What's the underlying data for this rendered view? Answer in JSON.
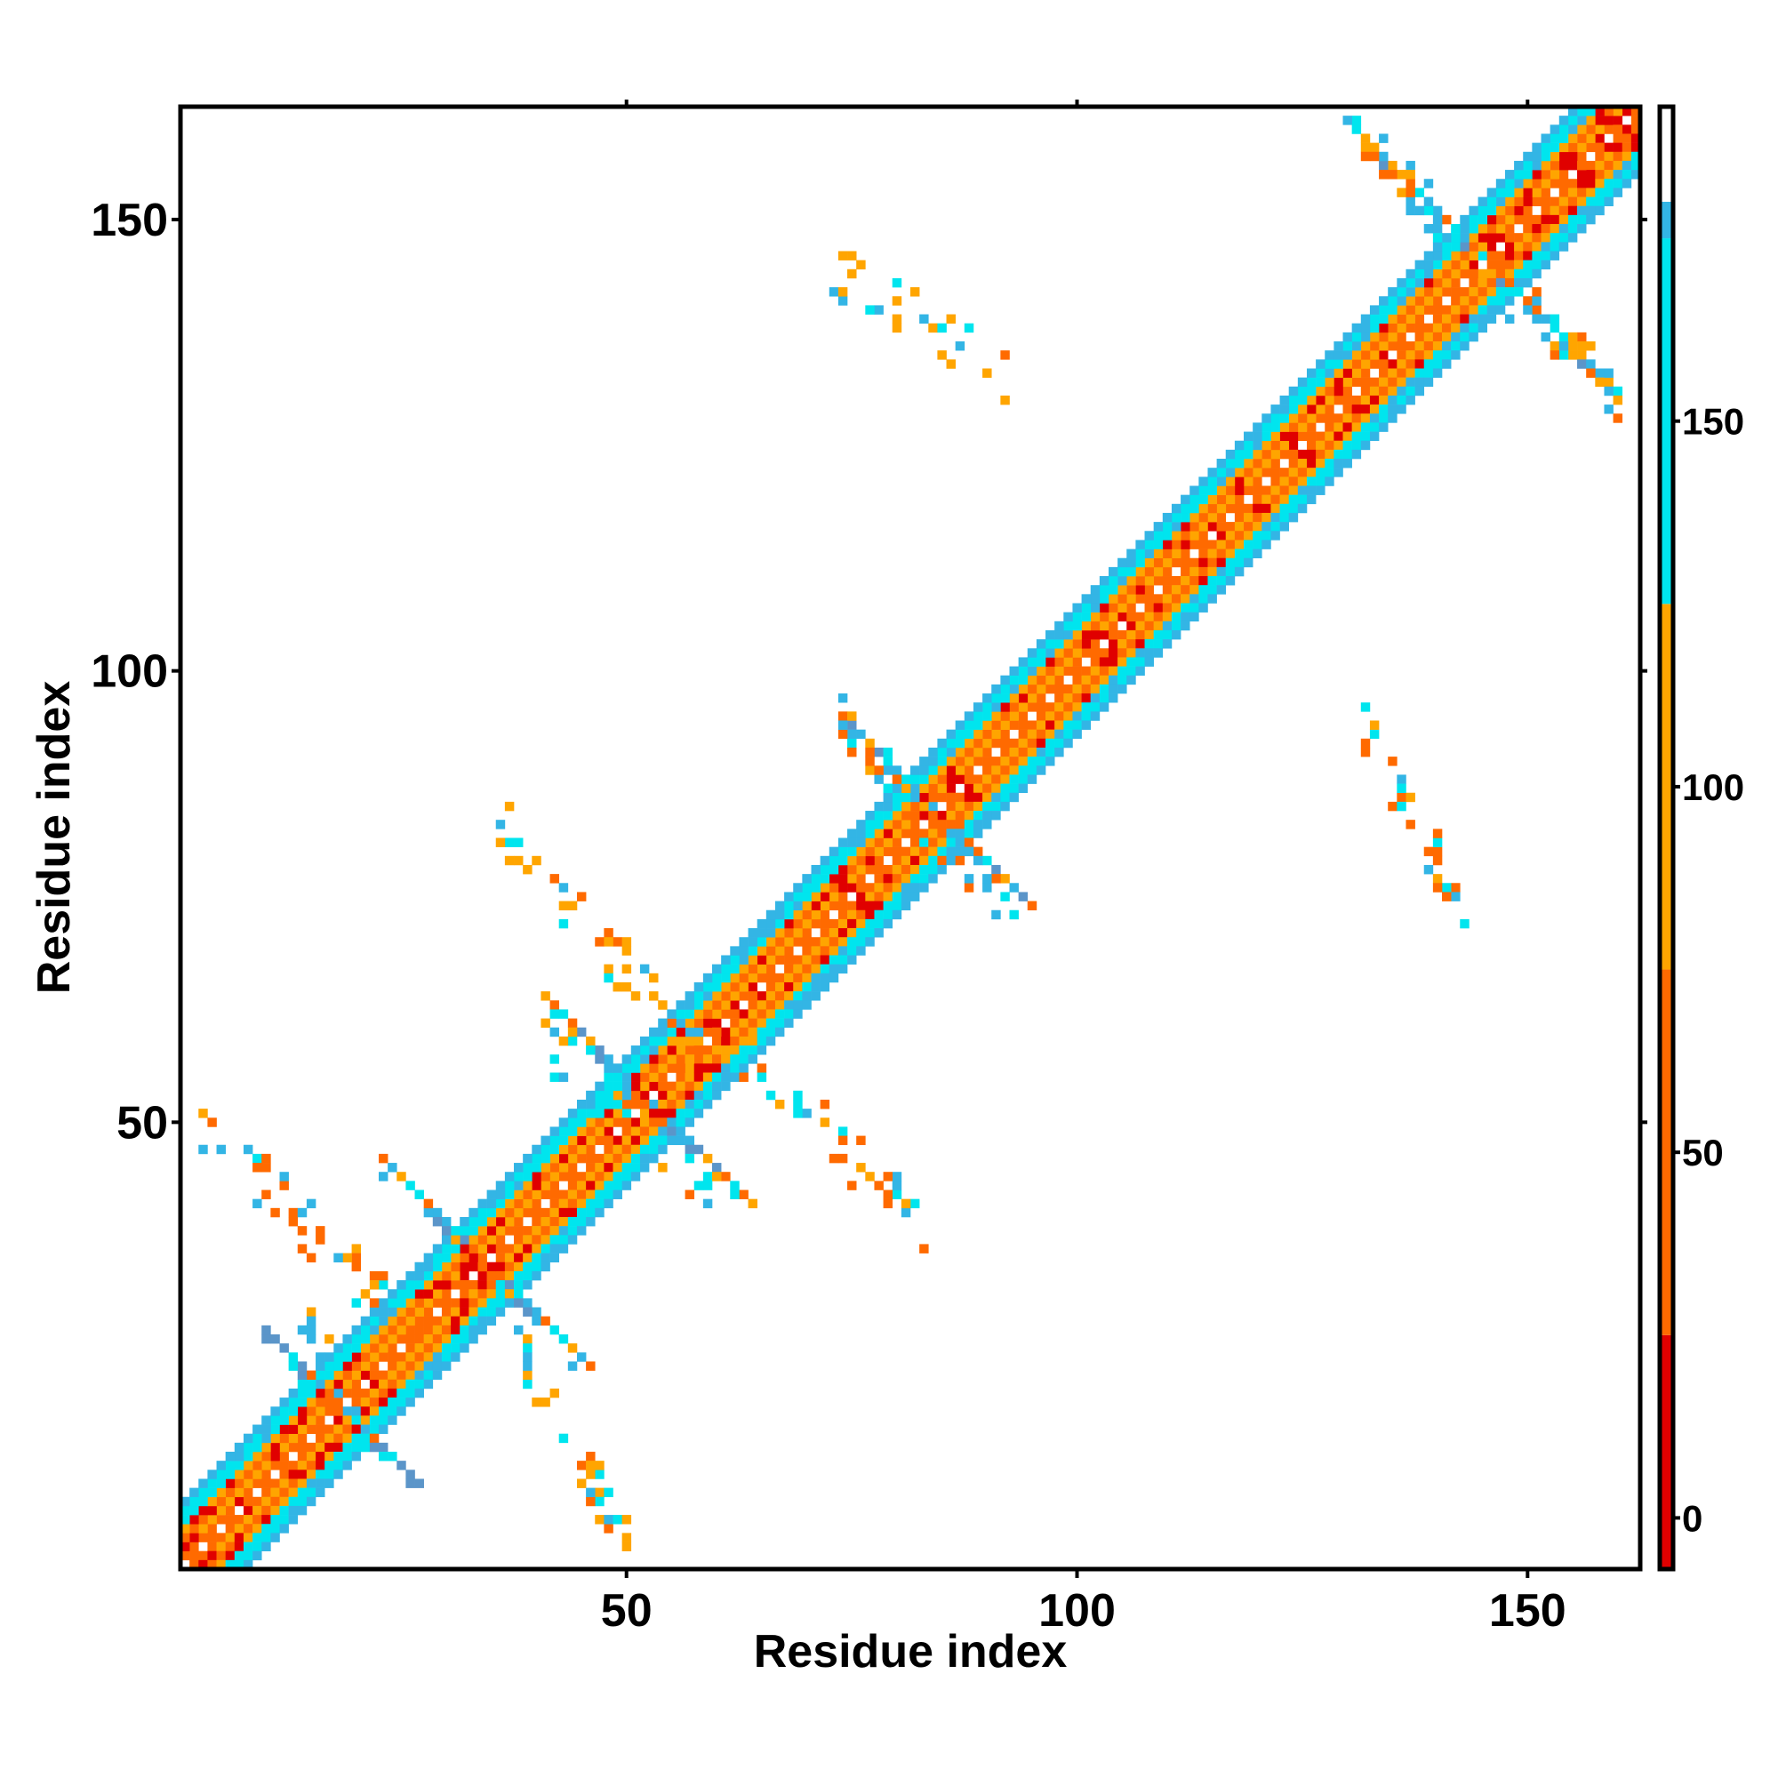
{
  "chart_data": {
    "type": "heatmap",
    "title": "",
    "xlabel": "Residue index",
    "ylabel": "Residue index",
    "xlim": [
      0.5,
      162.5
    ],
    "ylim": [
      0.5,
      162.5
    ],
    "x_ticks": [
      50,
      100,
      150
    ],
    "y_ticks": [
      50,
      100,
      150
    ],
    "colorbar": {
      "ticks": [
        0,
        50,
        100,
        150
      ],
      "range": [
        -7,
        193
      ],
      "bands": [
        {
          "from": -7,
          "to": 25,
          "color": "#e00000"
        },
        {
          "from": 25,
          "to": 75,
          "color": "#ff6a00"
        },
        {
          "from": 75,
          "to": 125,
          "color": "#ffa500"
        },
        {
          "from": 125,
          "to": 175,
          "color": "#00e5ee"
        },
        {
          "from": 175,
          "to": 180,
          "color": "#33b5e5"
        },
        {
          "from": 180,
          "to": 193,
          "color": "#ffffff"
        }
      ]
    },
    "colors": {
      "red": "#e00000",
      "orange": "#ff6a00",
      "amber": "#ffa500",
      "cyan": "#00e5ee",
      "blue": "#33b5e5",
      "steel": "#5b95c9"
    },
    "diagonal_band": {
      "n_residues": 162,
      "offsets": [
        {
          "d": 1,
          "color": "orange"
        },
        {
          "d": 2,
          "color": "amber"
        },
        {
          "d": 3,
          "color": "orange"
        },
        {
          "d": 4,
          "color": "amber"
        },
        {
          "d": 5,
          "color": "cyan"
        },
        {
          "d": 6,
          "color": "cyan"
        },
        {
          "d": 7,
          "color": "blue"
        }
      ]
    },
    "hotspots": [
      {
        "center": [
          18,
          18
        ],
        "color": "red"
      },
      {
        "center": [
          34,
          34
        ],
        "color": "red"
      },
      {
        "center": [
          52,
          52
        ],
        "color": "red"
      },
      {
        "center": [
          85,
          85
        ],
        "color": "red"
      },
      {
        "center": [
          146,
          146
        ],
        "color": "red"
      },
      {
        "center": [
          160,
          160
        ],
        "color": "red"
      }
    ],
    "crosses": [
      {
        "center": [
          18,
          18
        ],
        "arm": 8
      },
      {
        "center": [
          34,
          34
        ],
        "arm": 10
      },
      {
        "center": [
          52,
          52
        ],
        "arm": 10
      },
      {
        "center": [
          84,
          84
        ],
        "arm": 10
      },
      {
        "center": [
          145,
          145
        ],
        "arm": 13
      }
    ],
    "offdiag_clusters": [
      {
        "x": [
          3,
          27
        ],
        "y": [
          26,
          50
        ],
        "color": "orange"
      },
      {
        "x": [
          14,
          20
        ],
        "y": [
          18,
          30
        ],
        "color": "blue"
      },
      {
        "x": [
          37,
          50
        ],
        "y": [
          3,
          27
        ],
        "color": "amber"
      },
      {
        "x": [
          40,
          60
        ],
        "y": [
          43,
          60
        ],
        "color": "cyan"
      },
      {
        "x": [
          36,
          60
        ],
        "y": [
          55,
          83
        ],
        "color": "amber"
      },
      {
        "x": [
          61,
          84
        ],
        "y": [
          37,
          60
        ],
        "color": "orange"
      },
      {
        "x": [
          73,
          93
        ],
        "y": [
          73,
          95
        ],
        "color": "blue"
      },
      {
        "x": [
          73,
          93
        ],
        "y": [
          132,
          145
        ],
        "color": "amber"
      },
      {
        "x": [
          131,
          143
        ],
        "y": [
          74,
          95
        ],
        "color": "orange"
      },
      {
        "x": [
          130,
          160
        ],
        "y": [
          130,
          160
        ],
        "color": "blue"
      }
    ]
  }
}
